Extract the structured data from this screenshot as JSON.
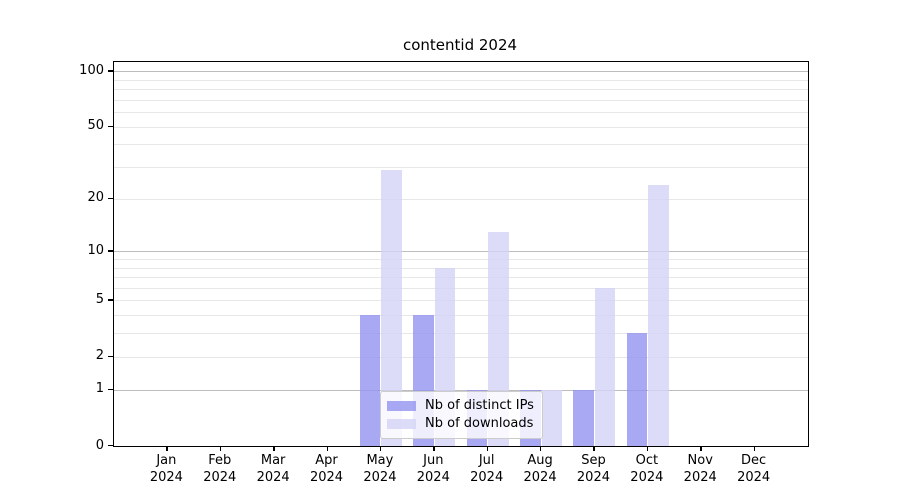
{
  "chart_data": {
    "type": "bar",
    "title": "contentid 2024",
    "categories": [
      "Jan",
      "Feb",
      "Mar",
      "Apr",
      "May",
      "Jun",
      "Jul",
      "Aug",
      "Sep",
      "Oct",
      "Nov",
      "Dec"
    ],
    "xtick_year": "2024",
    "series": [
      {
        "name": "Nb of distinct IPs",
        "color": "#9292f0",
        "alpha": 0.8,
        "values": [
          0,
          0,
          0,
          0,
          4,
          4,
          1,
          1,
          1,
          3,
          0,
          0
        ]
      },
      {
        "name": "Nb of downloads",
        "color": "#d3d3f6",
        "alpha": 0.8,
        "values": [
          0,
          0,
          0,
          0,
          29,
          8,
          13,
          1,
          6,
          24,
          0,
          0
        ]
      }
    ],
    "yscale": "log1p",
    "yticks": [
      0,
      1,
      2,
      5,
      10,
      20,
      50,
      100
    ],
    "ytick_major_gridlines": [
      1,
      10,
      100
    ],
    "ylim": [
      0,
      112
    ],
    "grid": true,
    "legend_position": "lower center inside",
    "colors": {
      "axis": "#000000",
      "grid_major": "#bdbdbd",
      "grid_minor": "#e7e7e7",
      "background": "#ffffff"
    }
  }
}
